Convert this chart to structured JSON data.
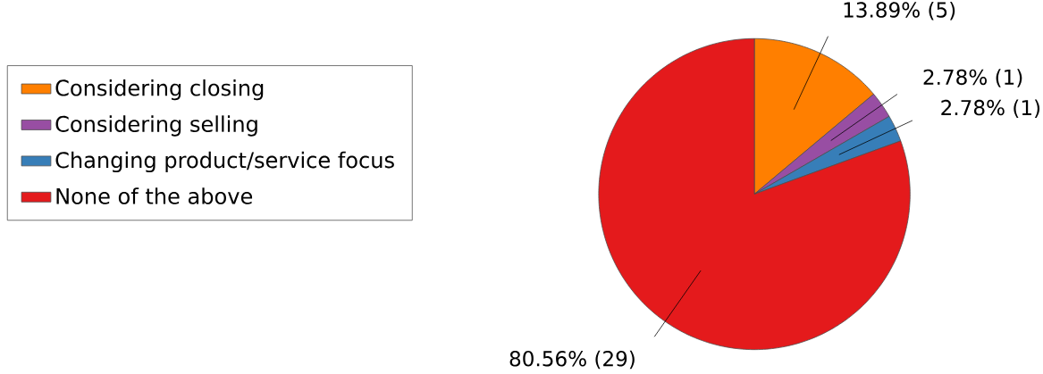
{
  "chart_data": {
    "type": "pie",
    "categories": [
      "Considering closing",
      "Considering selling",
      "Changing product/service focus",
      "None of the above"
    ],
    "values": [
      5,
      1,
      1,
      29
    ],
    "colors": [
      "#ff7f00",
      "#984ea3",
      "#377eb8",
      "#e41a1c"
    ],
    "value_labels": [
      "13.89% (5)",
      "2.78% (1)",
      "2.78% (1)",
      "80.56% (29)"
    ],
    "legend": "left"
  }
}
